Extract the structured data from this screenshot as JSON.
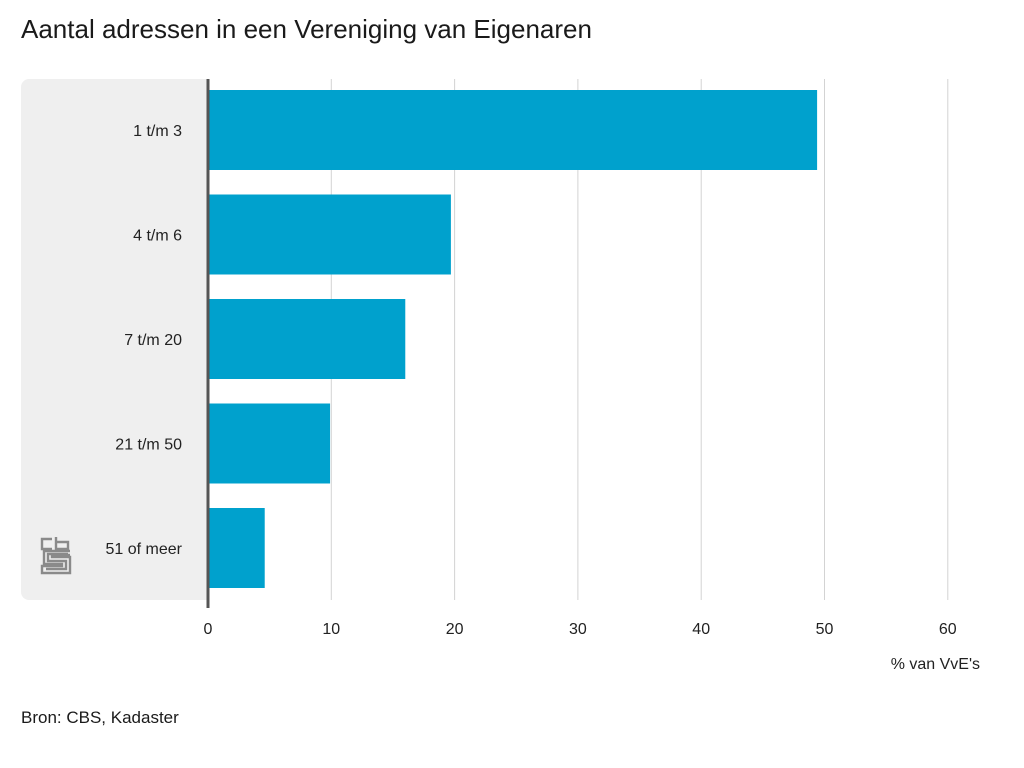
{
  "title": "Aantal adressen in een Vereniging van Eigenaren",
  "source": "Bron: CBS, Kadaster",
  "colors": {
    "bar": "#00a1cd",
    "panel": "#efefef",
    "axis": "#555555",
    "grid": "#d3d3d3",
    "logo": "#8a8a8a"
  },
  "logo": {
    "icon": "cbs-logo-icon"
  },
  "chart_data": {
    "type": "bar",
    "orientation": "horizontal",
    "categories": [
      "1 t/m 3",
      "4 t/m 6",
      "7 t/m 20",
      "21 t/m 50",
      "51 of meer"
    ],
    "values": [
      49.4,
      19.7,
      16.0,
      9.9,
      4.6
    ],
    "xlabel": "% van VvE's",
    "xlim": [
      0,
      60
    ],
    "xticks": [
      0,
      10,
      20,
      30,
      40,
      50,
      60
    ],
    "grid": true
  }
}
